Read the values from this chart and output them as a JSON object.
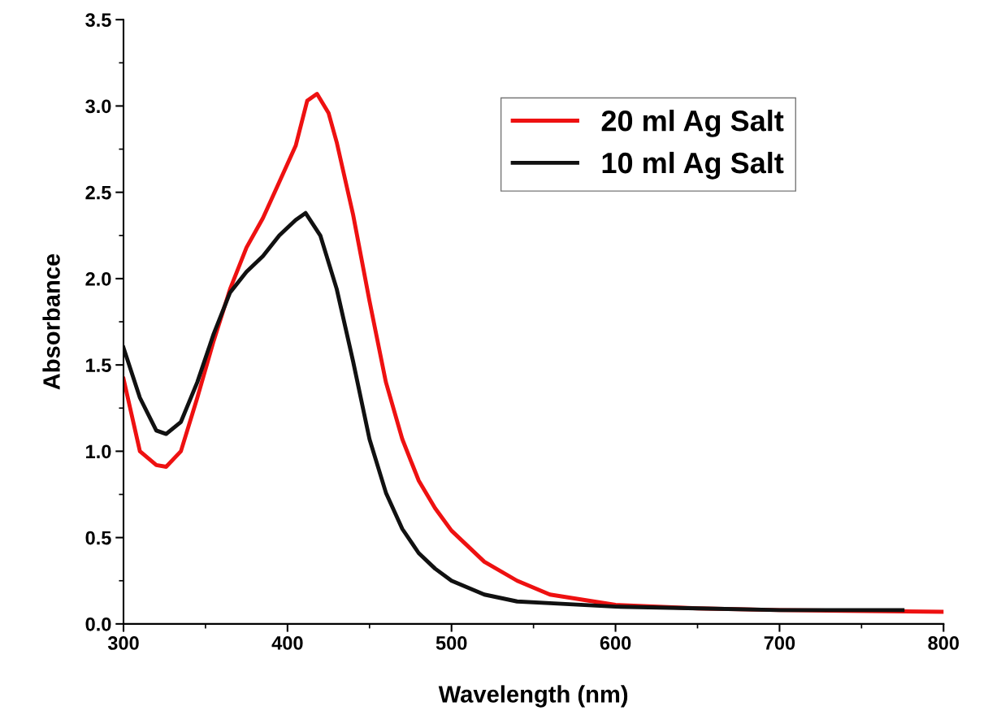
{
  "chart_data": {
    "type": "line",
    "xlabel": "Wavelength (nm)",
    "ylabel": "Absorbance",
    "xlim": [
      300,
      800
    ],
    "xticks": [
      300,
      400,
      500,
      600,
      700,
      800
    ],
    "ylim": [
      0,
      3.5
    ],
    "yticks": [
      {
        "value": 0,
        "label": "0.0"
      },
      {
        "value": 0.5,
        "label": "0.5"
      },
      {
        "value": 1,
        "label": "1.0"
      },
      {
        "value": 1.5,
        "label": "1.5"
      },
      {
        "value": 2,
        "label": "2.0"
      },
      {
        "value": 2.5,
        "label": "2.5"
      },
      {
        "value": 3,
        "label": "3.0"
      },
      {
        "value": 3.5,
        "label": "3.5"
      }
    ],
    "grid": false,
    "legend": "top",
    "marker": "none",
    "line_style": "solid",
    "series": [
      {
        "name": "20 ml Ag Salt",
        "color": "#ee1111",
        "x": [
          300,
          310,
          320,
          326,
          335,
          345,
          355,
          365,
          375,
          385,
          395,
          405,
          412,
          418,
          425,
          430,
          440,
          450,
          460,
          470,
          480,
          490,
          500,
          520,
          540,
          560,
          600,
          650,
          700,
          800
        ],
        "values": [
          1.42,
          1.0,
          0.92,
          0.91,
          1.0,
          1.31,
          1.64,
          1.94,
          2.18,
          2.35,
          2.56,
          2.77,
          3.03,
          3.07,
          2.96,
          2.79,
          2.37,
          1.87,
          1.4,
          1.07,
          0.83,
          0.67,
          0.54,
          0.36,
          0.25,
          0.17,
          0.11,
          0.09,
          0.08,
          0.07
        ]
      },
      {
        "name": "10 ml Ag Salt",
        "color": "#111111",
        "x": [
          300,
          310,
          320,
          326,
          335,
          345,
          355,
          365,
          375,
          385,
          395,
          405,
          411,
          420,
          430,
          440,
          450,
          460,
          470,
          480,
          490,
          500,
          520,
          540,
          560,
          600,
          650,
          700,
          775
        ],
        "values": [
          1.6,
          1.31,
          1.12,
          1.1,
          1.17,
          1.4,
          1.68,
          1.92,
          2.04,
          2.13,
          2.25,
          2.34,
          2.38,
          2.25,
          1.94,
          1.52,
          1.07,
          0.76,
          0.55,
          0.41,
          0.32,
          0.25,
          0.17,
          0.13,
          0.12,
          0.1,
          0.09,
          0.08,
          0.08
        ]
      }
    ]
  }
}
